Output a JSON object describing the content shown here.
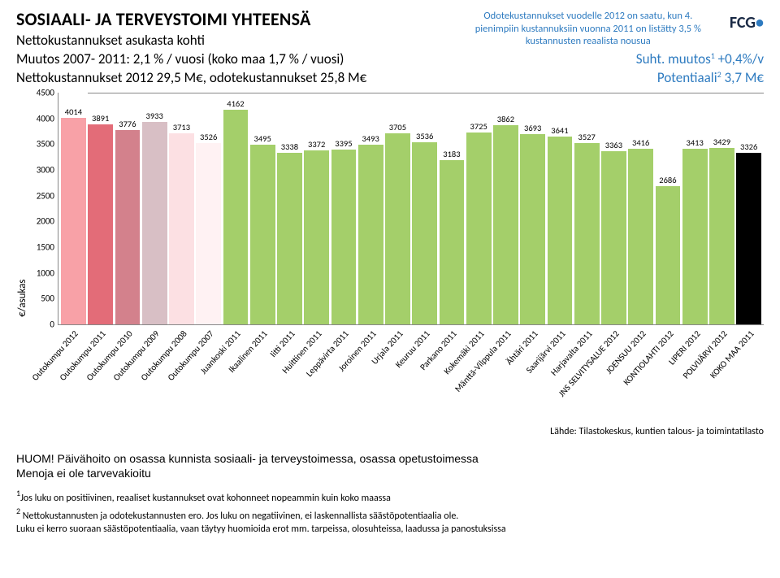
{
  "header": {
    "title": "SOSIAALI- JA TERVEYSTOIMI YHTEENSÄ",
    "subtitle": "Nettokustannukset  asukasta kohti",
    "callout_line1": "Odotekustannukset vuodelle 2012 on saatu, kun 4.",
    "callout_line2": "pienimpiin kustannuksiin vuonna 2011 on listätty 3,5 %",
    "callout_line3": "kustannusten reaalista nousua",
    "logo_text": "FCG",
    "logo_dot": "•"
  },
  "lines": {
    "l1_left": "Muutos 2007- 2011: 2,1 % / vuosi (koko maa 1,7 % / vuosi)",
    "l1_right_a": "Suht. muutos",
    "l1_right_sup": "1",
    "l1_right_b": "  +0,4%/v",
    "l2_left": "Nettokustannukset 2012 29,5 M€, odotekustannukset 25,8 M€",
    "l2_right_a": "Potentiaali",
    "l2_right_sup": "2",
    "l2_right_b": "  3,7 M€"
  },
  "chart": {
    "ylabel": "€/asukas",
    "ymax": 4500,
    "ytick_step": 500,
    "bars": [
      {
        "label": "Outokumpu 2012",
        "value": 4014,
        "color": "#f8a1a7"
      },
      {
        "label": "Outokumpu 2011",
        "value": 3891,
        "color": "#e36c78"
      },
      {
        "label": "Outokumpu 2010",
        "value": 3776,
        "color": "#d3818c"
      },
      {
        "label": "Outokumpu 2009",
        "value": 3933,
        "color": "#d8bfc5"
      },
      {
        "label": "Outokumpu 2008",
        "value": 3713,
        "color": "#fce0e3"
      },
      {
        "label": "Outokumpu 2007",
        "value": 3526,
        "color": "#fff2f3"
      },
      {
        "label": "Juankoski 2011",
        "value": 4162,
        "color": "#a4cf6a"
      },
      {
        "label": "Ikaalinen 2011",
        "value": 3495,
        "color": "#a4cf6a"
      },
      {
        "label": "Iitti 2011",
        "value": 3338,
        "color": "#a4cf6a"
      },
      {
        "label": "Huittinen 2011",
        "value": 3372,
        "color": "#a4cf6a"
      },
      {
        "label": "Leppävirta 2011",
        "value": 3395,
        "color": "#a4cf6a"
      },
      {
        "label": "Joroinen 2011",
        "value": 3493,
        "color": "#a4cf6a"
      },
      {
        "label": "Urjala 2011",
        "value": 3705,
        "color": "#a4cf6a"
      },
      {
        "label": "Keuruu 2011",
        "value": 3536,
        "color": "#a4cf6a"
      },
      {
        "label": "Parkano 2011",
        "value": 3183,
        "color": "#a4cf6a"
      },
      {
        "label": "Kokemäki 2011",
        "value": 3725,
        "color": "#a4cf6a"
      },
      {
        "label": "Mänttä-Vilppula 2011",
        "value": 3862,
        "color": "#a4cf6a"
      },
      {
        "label": "Ähtäri 2011",
        "value": 3693,
        "color": "#a4cf6a"
      },
      {
        "label": "Saarijärvi 2011",
        "value": 3641,
        "color": "#a4cf6a"
      },
      {
        "label": "Harjavalta 2011",
        "value": 3527,
        "color": "#a4cf6a"
      },
      {
        "label": "JNS SELVITYSALUE 2012",
        "value": 3363,
        "color": "#a4cf6a"
      },
      {
        "label": "JOENSUU 2012",
        "value": 3416,
        "color": "#a4cf6a"
      },
      {
        "label": "KONTIOLAHTI 2012",
        "value": 2686,
        "color": "#a4cf6a"
      },
      {
        "label": "LIPERI 2012",
        "value": 3413,
        "color": "#a4cf6a"
      },
      {
        "label": "POLVIJÄRVI 2012",
        "value": 3429,
        "color": "#a4cf6a"
      },
      {
        "label": "KOKO MAA 2011",
        "value": 3326,
        "color": "#000000"
      }
    ]
  },
  "source": "Lähde: Tilastokeskus, kuntien talous- ja toimintatilasto",
  "huom_line1": "HUOM! Päivähoito on osassa kunnista sosiaali- ja terveystoimessa, osassa opetustoimessa",
  "huom_line2": "Menoja ei ole tarvevakioitu",
  "footnote1_sup": "1",
  "footnote1": "Jos luku on positiivinen, reaaliset kustannukset ovat kohonneet nopeammin kuin koko maassa",
  "footnote2_sup": "2",
  "footnote2a": " Nettokustannusten ja odotekustannusten ero. Jos luku on negatiivinen, ei laskennallista säästöpotentiaalia ole.",
  "footnote2b": "Luku ei kerro suoraan säästöpotentiaalia, vaan täytyy huomioida erot mm. tarpeissa, olosuhteissa, laadussa ja panostuksissa"
}
